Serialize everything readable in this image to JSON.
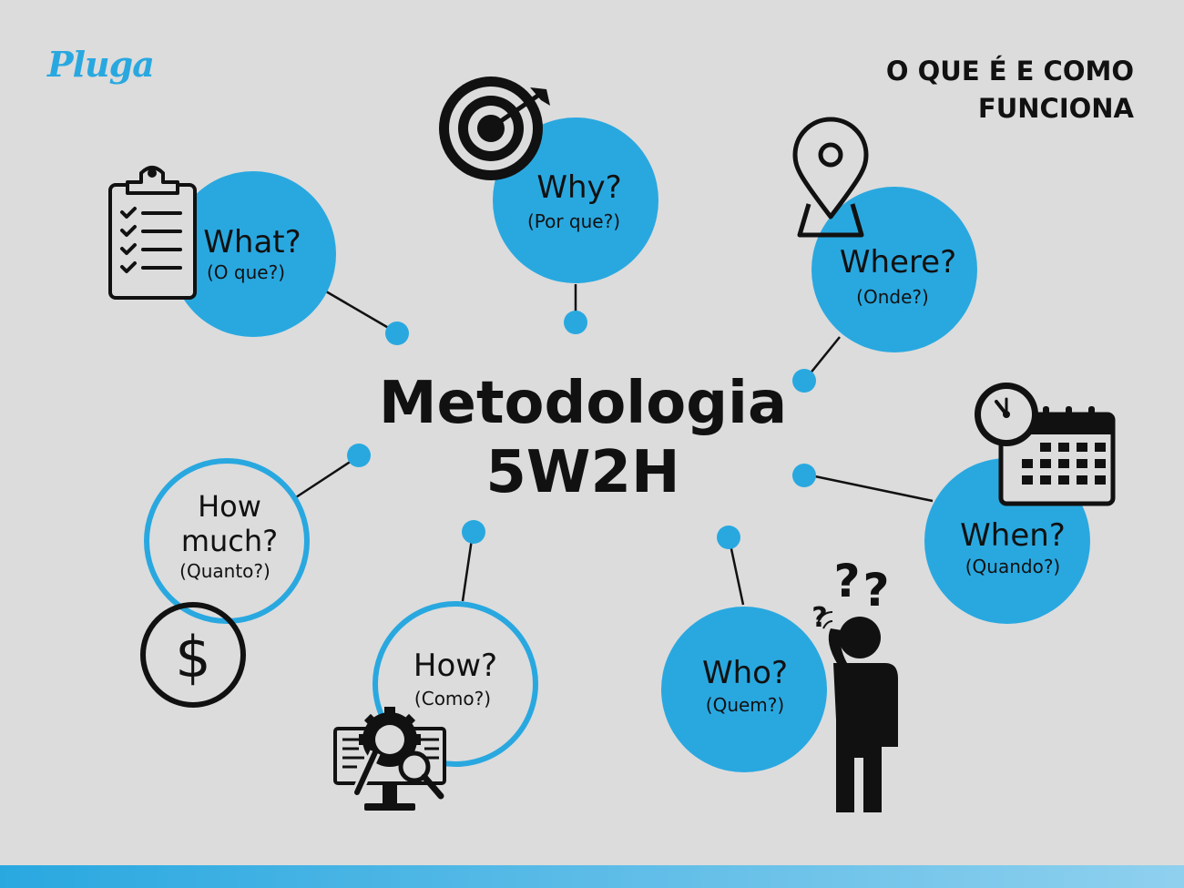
{
  "brand": {
    "logo_text": "Pluga"
  },
  "header": {
    "subtitle_line1": "O QUE É E COMO",
    "subtitle_line2": "FUNCIONA"
  },
  "center": {
    "title_line1": "Metodologia",
    "title_line2": "5W2H"
  },
  "colors": {
    "accent": "#29a8e0",
    "background": "#dcdcdc",
    "text": "#111111",
    "icon": "#111111"
  },
  "nodes": {
    "what": {
      "label": "What?",
      "sublabel": "(O que?)",
      "icon": "clipboard-checklist-icon"
    },
    "why": {
      "label": "Why?",
      "sublabel": "(Por que?)",
      "icon": "target-arrow-icon"
    },
    "where": {
      "label": "Where?",
      "sublabel": "(Onde?)",
      "icon": "location-pin-icon"
    },
    "when": {
      "label": "When?",
      "sublabel": "(Quando?)",
      "icon": "clock-calendar-icon"
    },
    "who": {
      "label": "Who?",
      "sublabel": "(Quem?)",
      "icon": "confused-person-icon"
    },
    "how": {
      "label": "How?",
      "sublabel": "(Como?)",
      "icon": "computer-settings-icon"
    },
    "how_much": {
      "label_line1": "How",
      "label_line2": "much?",
      "sublabel": "(Quanto?)",
      "icon": "dollar-coin-icon"
    }
  }
}
